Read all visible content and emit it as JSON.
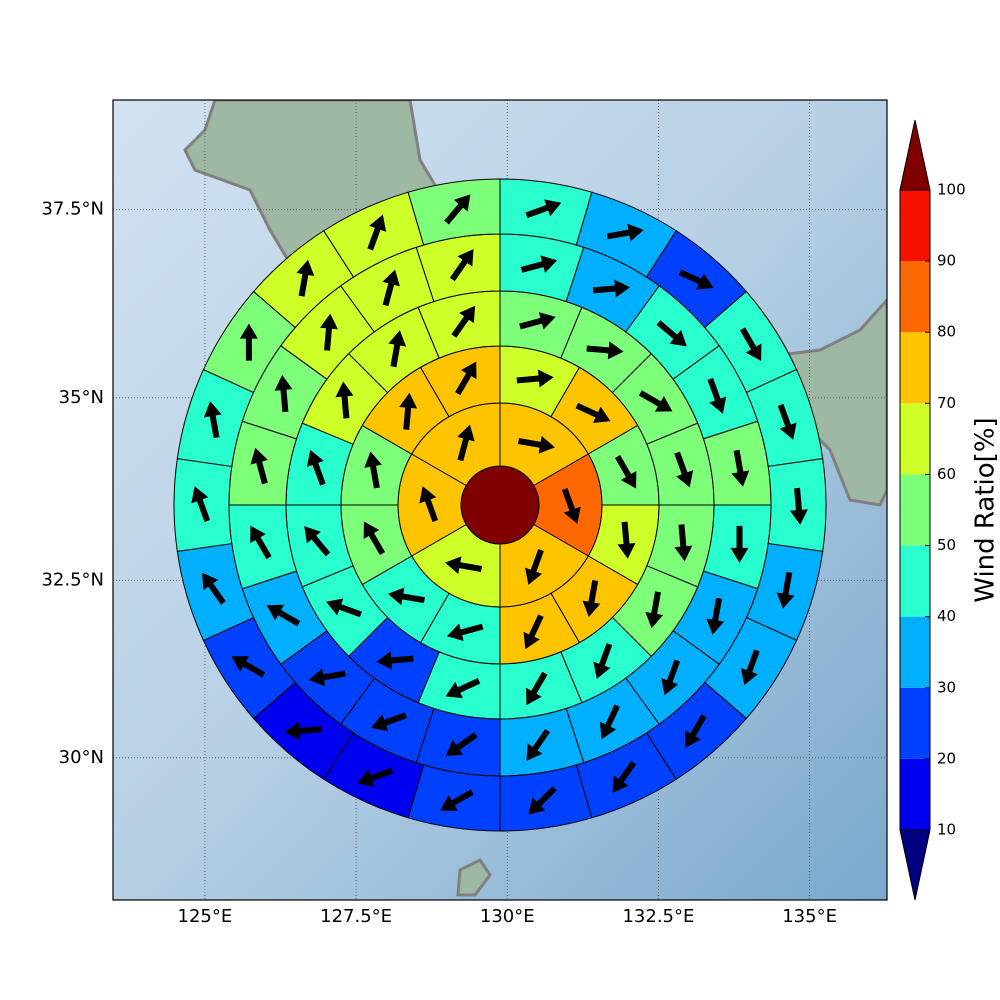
{
  "chart_data": {
    "type": "polar-sector",
    "xlim": [
      123.48,
      136.28
    ],
    "ylim": [
      27.95,
      38.92
    ],
    "xticks": [
      {
        "value": 125,
        "label": "125°E"
      },
      {
        "value": 127.5,
        "label": "127.5°E"
      },
      {
        "value": 130,
        "label": "130°E"
      },
      {
        "value": 132.5,
        "label": "132.5°E"
      },
      {
        "value": 135,
        "label": "135°E"
      }
    ],
    "yticks": [
      {
        "value": 30,
        "label": "30°N"
      },
      {
        "value": 32.5,
        "label": "32.5°N"
      },
      {
        "value": 35,
        "label": "35°N"
      },
      {
        "value": 37.5,
        "label": "37.5°N"
      }
    ],
    "grid": true,
    "center_value": 105,
    "rings": [
      {
        "values": [
          75,
          85,
          75,
          65,
          75,
          75
        ],
        "directions": [
          100,
          160,
          200,
          280,
          340,
          15
        ]
      },
      {
        "values": [
          65,
          75,
          55,
          65,
          75,
          75,
          45,
          45,
          55,
          55,
          75,
          75
        ],
        "directions": [
          85,
          115,
          150,
          175,
          190,
          205,
          255,
          280,
          330,
          350,
          5,
          30
        ]
      },
      {
        "values": [
          55,
          55,
          55,
          55,
          55,
          55,
          45,
          45,
          45,
          25,
          45,
          45,
          45,
          65,
          65,
          65
        ],
        "directions": [
          75,
          95,
          120,
          160,
          175,
          190,
          200,
          210,
          245,
          265,
          290,
          320,
          340,
          355,
          10,
          35
        ]
      },
      {
        "values": [
          45,
          35,
          45,
          45,
          55,
          45,
          35,
          35,
          35,
          35,
          25,
          25,
          25,
          35,
          45,
          55,
          55,
          65,
          65,
          65
        ],
        "directions": [
          75,
          85,
          130,
          160,
          170,
          180,
          190,
          200,
          205,
          215,
          235,
          250,
          260,
          300,
          330,
          345,
          355,
          5,
          15,
          35
        ]
      },
      {
        "values": [
          45,
          35,
          25,
          45,
          45,
          45,
          35,
          35,
          25,
          25,
          25,
          25,
          15,
          15,
          25,
          35,
          45,
          45,
          55,
          65,
          65,
          55
        ],
        "directions": [
          70,
          80,
          115,
          150,
          160,
          175,
          190,
          200,
          210,
          215,
          225,
          240,
          250,
          265,
          300,
          325,
          340,
          350,
          0,
          10,
          20,
          40
        ]
      }
    ],
    "colorbar": {
      "label": "Wind Ratio[%]",
      "ticks": [
        10,
        20,
        30,
        40,
        50,
        60,
        70,
        80,
        90,
        100
      ],
      "colors": [
        "#000080",
        "#0000f0",
        "#0040ff",
        "#00b0ff",
        "#29ffce",
        "#7dff7a",
        "#ceff29",
        "#ffc400",
        "#ff6800",
        "#f51000",
        "#800000"
      ]
    }
  }
}
